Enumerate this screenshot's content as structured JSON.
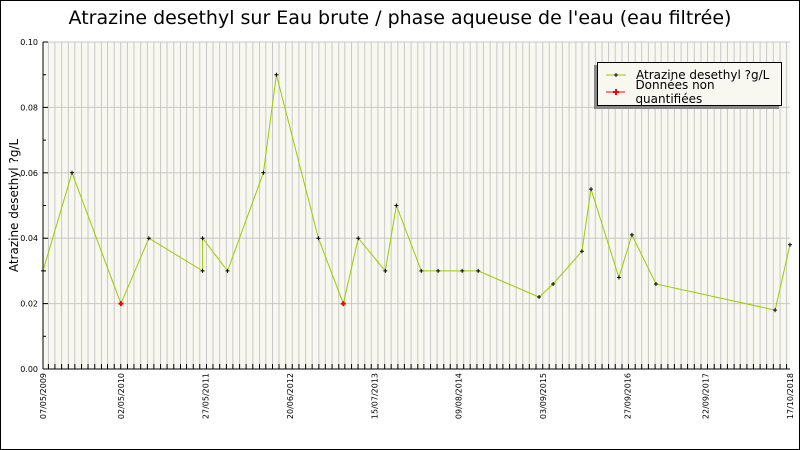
{
  "chart_data": {
    "type": "line",
    "title": "Atrazine desethyl sur Eau brute / phase aqueuse de l'eau (eau filtrée)",
    "xlabel": "",
    "ylabel": "Atrazine desethyl ?g/L",
    "ylim": [
      0,
      0.1
    ],
    "yticks": [
      "0.00",
      "0.02",
      "0.04",
      "0.06",
      "0.08",
      "0.10"
    ],
    "xlim": [
      "2009-05-07",
      "2018-10-17"
    ],
    "xticks": [
      {
        "date": "2009-05-07",
        "label": "07/05/2009"
      },
      {
        "date": "2010-05-02",
        "label": "02/05/2010"
      },
      {
        "date": "2011-05-27",
        "label": "27/05/2011"
      },
      {
        "date": "2012-06-20",
        "label": "20/06/2012"
      },
      {
        "date": "2013-07-15",
        "label": "15/07/2013"
      },
      {
        "date": "2014-08-09",
        "label": "09/08/2014"
      },
      {
        "date": "2015-09-03",
        "label": "03/09/2015"
      },
      {
        "date": "2016-09-27",
        "label": "27/09/2016"
      },
      {
        "date": "2017-09-22",
        "label": "22/09/2017"
      },
      {
        "date": "2018-10-17",
        "label": "17/10/2018"
      }
    ],
    "grid": true,
    "legend_position": "top-right",
    "series": [
      {
        "name": "Atrazine desethyl ?g/L",
        "color": "#99cc00",
        "marker_color": "#000000",
        "points": [
          {
            "x": "2009-05-07",
            "y": 0.03
          },
          {
            "x": "2009-09-18",
            "y": 0.06
          },
          {
            "x": "2010-05-02",
            "y": 0.02,
            "nq": true
          },
          {
            "x": "2010-09-08",
            "y": 0.04
          },
          {
            "x": "2011-05-14",
            "y": 0.03
          },
          {
            "x": "2011-05-14",
            "y": 0.04
          },
          {
            "x": "2011-09-06",
            "y": 0.03
          },
          {
            "x": "2012-02-19",
            "y": 0.06
          },
          {
            "x": "2012-04-19",
            "y": 0.09
          },
          {
            "x": "2012-10-30",
            "y": 0.04
          },
          {
            "x": "2013-02-22",
            "y": 0.02,
            "nq": true
          },
          {
            "x": "2013-05-02",
            "y": 0.04
          },
          {
            "x": "2013-09-04",
            "y": 0.03
          },
          {
            "x": "2013-10-25",
            "y": 0.05
          },
          {
            "x": "2014-02-17",
            "y": 0.03
          },
          {
            "x": "2014-05-06",
            "y": 0.03
          },
          {
            "x": "2014-08-25",
            "y": 0.03
          },
          {
            "x": "2014-11-07",
            "y": 0.03
          },
          {
            "x": "2015-08-15",
            "y": 0.022
          },
          {
            "x": "2015-10-19",
            "y": 0.026
          },
          {
            "x": "2016-02-29",
            "y": 0.036
          },
          {
            "x": "2016-04-11",
            "y": 0.055
          },
          {
            "x": "2016-08-18",
            "y": 0.028
          },
          {
            "x": "2016-10-17",
            "y": 0.041
          },
          {
            "x": "2017-02-05",
            "y": 0.026
          },
          {
            "x": "2018-08-09",
            "y": 0.018
          },
          {
            "x": "2018-10-17",
            "y": 0.038
          }
        ]
      }
    ],
    "legend": [
      {
        "label": "Atrazine desethyl ?g/L",
        "marker_color": "#000000",
        "line_color": "#99cc00"
      },
      {
        "label": "Données non quantifiées",
        "marker_color": "#ff0000",
        "line_color": "#ff0000"
      }
    ],
    "colors": {
      "plot_bg": "#f8f8f0",
      "grid": "#c8c8c8",
      "line": "#99cc00",
      "nq": "#ff0000"
    }
  }
}
